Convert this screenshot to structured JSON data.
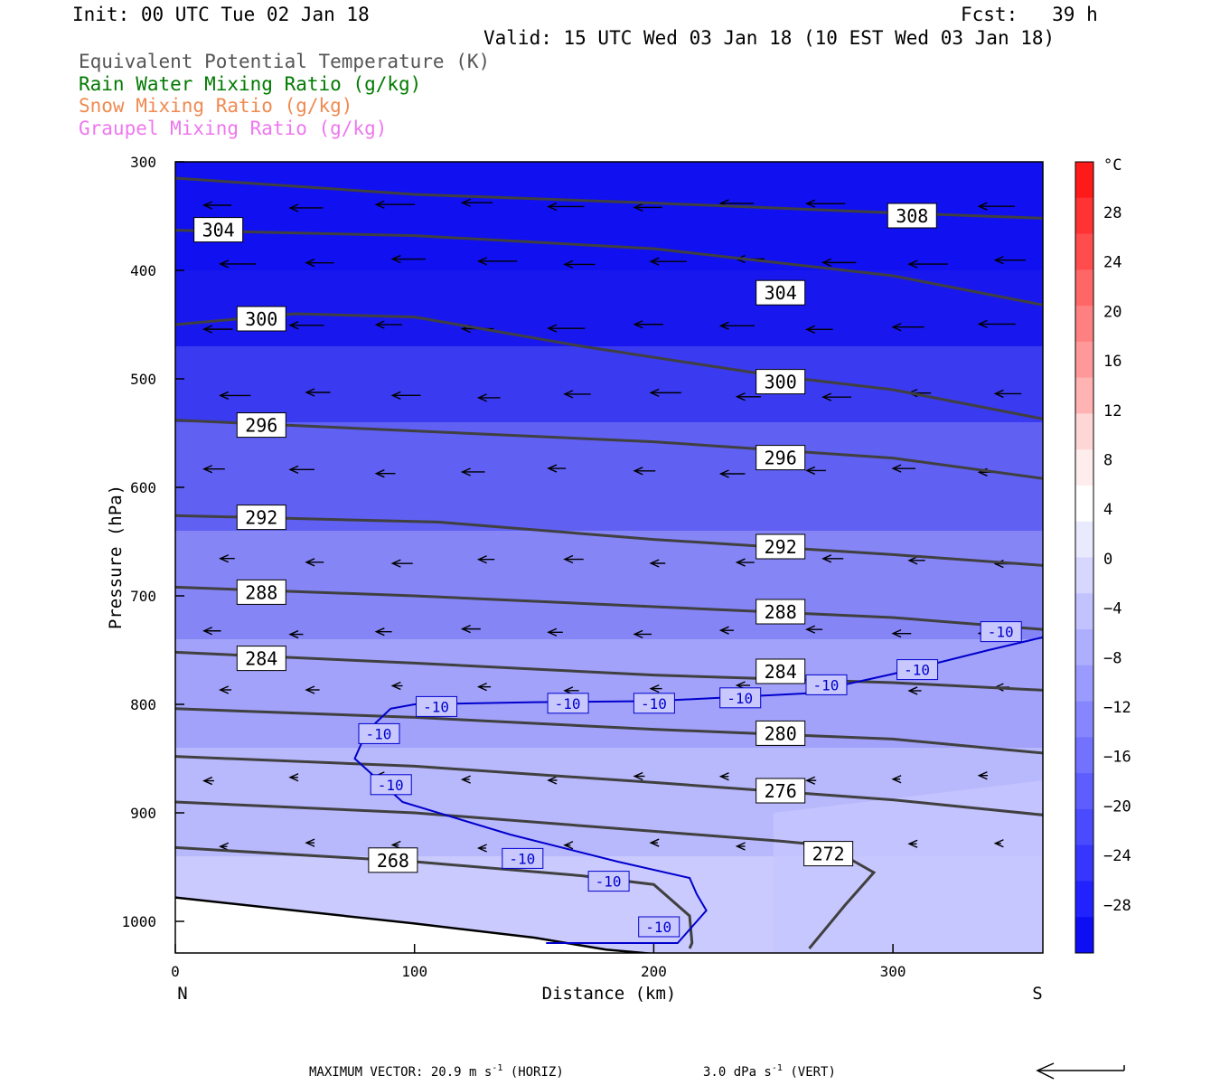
{
  "header": {
    "init": "Init: 00 UTC Tue 02 Jan 18",
    "fcst": "Fcst:   39 h",
    "valid": "Valid: 15 UTC Wed 03 Jan 18 (10 EST Wed 03 Jan 18)"
  },
  "chart_data": {
    "type": "cross-section contour",
    "title_lines": [
      {
        "text": "Equivalent Potential Temperature (K)",
        "color": "#555555"
      },
      {
        "text": "Rain Water Mixing Ratio (g/kg)",
        "color": "#007a00"
      },
      {
        "text": "Snow Mixing Ratio (g/kg)",
        "color": "#f08a50"
      },
      {
        "text": "Graupel Mixing Ratio (g/kg)",
        "color": "#ee77ee"
      }
    ],
    "xlabel": "Distance (km)",
    "ylabel": "Pressure (hPa)",
    "x_ticks": [
      0,
      100,
      200,
      300
    ],
    "y_ticks": [
      300,
      400,
      500,
      600,
      700,
      800,
      900,
      1000
    ],
    "xlim": [
      0,
      363
    ],
    "ylim": [
      300,
      1030
    ],
    "left_end": "N",
    "right_end": "S",
    "theta_e_contours": [
      {
        "label": "308",
        "points": [
          [
            0,
            315
          ],
          [
            100,
            330
          ],
          [
            200,
            338
          ],
          [
            300,
            347
          ],
          [
            363,
            352
          ]
        ]
      },
      {
        "label": "304",
        "points": [
          [
            0,
            363
          ],
          [
            100,
            368
          ],
          [
            200,
            380
          ],
          [
            300,
            405
          ],
          [
            363,
            432
          ]
        ]
      },
      {
        "label": "300",
        "points": [
          [
            0,
            450
          ],
          [
            50,
            440
          ],
          [
            100,
            443
          ],
          [
            170,
            470
          ],
          [
            250,
            497
          ],
          [
            300,
            510
          ],
          [
            363,
            537
          ]
        ]
      },
      {
        "label": "296",
        "points": [
          [
            0,
            538
          ],
          [
            100,
            548
          ],
          [
            200,
            558
          ],
          [
            300,
            573
          ],
          [
            363,
            592
          ]
        ]
      },
      {
        "label": "292",
        "points": [
          [
            0,
            626
          ],
          [
            110,
            632
          ],
          [
            200,
            648
          ],
          [
            300,
            662
          ],
          [
            363,
            672
          ]
        ]
      },
      {
        "label": "288",
        "points": [
          [
            0,
            692
          ],
          [
            100,
            700
          ],
          [
            200,
            710
          ],
          [
            300,
            720
          ],
          [
            363,
            731
          ]
        ]
      },
      {
        "label": "284",
        "points": [
          [
            0,
            752
          ],
          [
            100,
            762
          ],
          [
            200,
            773
          ],
          [
            300,
            780
          ],
          [
            363,
            787
          ]
        ]
      },
      {
        "label": "280",
        "points": [
          [
            0,
            804
          ],
          [
            100,
            812
          ],
          [
            200,
            823
          ],
          [
            300,
            832
          ],
          [
            363,
            845
          ]
        ]
      },
      {
        "label": "276",
        "points": [
          [
            0,
            848
          ],
          [
            100,
            857
          ],
          [
            200,
            872
          ],
          [
            300,
            888
          ],
          [
            363,
            902
          ]
        ]
      },
      {
        "label": "272",
        "points": [
          [
            0,
            890
          ],
          [
            100,
            900
          ],
          [
            200,
            917
          ],
          [
            253,
            926
          ],
          [
            272,
            930
          ],
          [
            292,
            955
          ],
          [
            280,
            985
          ],
          [
            265,
            1025
          ]
        ]
      },
      {
        "label": "268",
        "points": [
          [
            0,
            932
          ],
          [
            100,
            945
          ],
          [
            170,
            958
          ],
          [
            200,
            966
          ],
          [
            215,
            995
          ],
          [
            216,
            1020
          ],
          [
            215,
            1025
          ]
        ]
      }
    ],
    "temperature_contours": [
      {
        "label": "-10",
        "color": "#0000cc",
        "points": [
          [
            363,
            738
          ],
          [
            340,
            750
          ],
          [
            300,
            772
          ],
          [
            263,
            790
          ],
          [
            200,
            797
          ],
          [
            150,
            798
          ],
          [
            100,
            800
          ],
          [
            90,
            804
          ],
          [
            80,
            825
          ],
          [
            75,
            850
          ],
          [
            95,
            890
          ],
          [
            140,
            920
          ],
          [
            185,
            945
          ],
          [
            215,
            960
          ],
          [
            218,
            975
          ],
          [
            222,
            990
          ],
          [
            210,
            1020
          ],
          [
            180,
            1020
          ],
          [
            155,
            1020
          ]
        ]
      }
    ],
    "contour_labels": [
      {
        "text": "308",
        "x": 308,
        "p": 350
      },
      {
        "text": "304",
        "x": 18,
        "p": 363
      },
      {
        "text": "304",
        "x": 253,
        "p": 421
      },
      {
        "text": "300",
        "x": 36,
        "p": 445
      },
      {
        "text": "300",
        "x": 253,
        "p": 503
      },
      {
        "text": "296",
        "x": 36,
        "p": 543
      },
      {
        "text": "296",
        "x": 253,
        "p": 573
      },
      {
        "text": "292",
        "x": 36,
        "p": 628
      },
      {
        "text": "292",
        "x": 253,
        "p": 655
      },
      {
        "text": "288",
        "x": 36,
        "p": 697
      },
      {
        "text": "288",
        "x": 253,
        "p": 715
      },
      {
        "text": "284",
        "x": 36,
        "p": 758
      },
      {
        "text": "284",
        "x": 253,
        "p": 770
      },
      {
        "text": "280",
        "x": 253,
        "p": 827
      },
      {
        "text": "276",
        "x": 253,
        "p": 880
      },
      {
        "text": "272",
        "x": 273,
        "p": 938
      },
      {
        "text": "268",
        "x": 91,
        "p": 944
      }
    ],
    "temp_labels": [
      {
        "text": "-10",
        "x": 345,
        "p": 733
      },
      {
        "text": "-10",
        "x": 310,
        "p": 768
      },
      {
        "text": "-10",
        "x": 272,
        "p": 782
      },
      {
        "text": "-10",
        "x": 236,
        "p": 794
      },
      {
        "text": "-10",
        "x": 200,
        "p": 799
      },
      {
        "text": "-10",
        "x": 164,
        "p": 799
      },
      {
        "text": "-10",
        "x": 109,
        "p": 802
      },
      {
        "text": "-10",
        "x": 85,
        "p": 827
      },
      {
        "text": "-10",
        "x": 90,
        "p": 874
      },
      {
        "text": "-10",
        "x": 145,
        "p": 942
      },
      {
        "text": "-10",
        "x": 181,
        "p": 963
      },
      {
        "text": "-10",
        "x": 202,
        "p": 1005
      }
    ],
    "colorbar": {
      "unit": "°C",
      "levels": [
        28,
        24,
        20,
        16,
        12,
        8,
        4,
        0,
        -4,
        -8,
        -12,
        -16,
        -20,
        -24,
        -28
      ],
      "colors": [
        "#ff1a1a",
        "#ff3333",
        "#ff4d4d",
        "#ff6666",
        "#ff8080",
        "#ff9999",
        "#ffb3b3",
        "#ffd6d6",
        "#ffecec",
        "#ffffff",
        "#eaeaff",
        "#d6d6ff",
        "#c2c2ff",
        "#aeaeff",
        "#9a9aff",
        "#8686ff",
        "#7272ff",
        "#5e5eff",
        "#4a4aff",
        "#3636ff",
        "#2222ff",
        "#0e0ef5"
      ]
    },
    "fill_colors": {
      "p300": "#1010f0",
      "p400": "#1818ee",
      "p500": "#3a3af0",
      "p600": "#6060f2",
      "p700": "#8585f6",
      "p800": "#a2a2fa",
      "p900": "#b8b8fc",
      "p1000": "#cacaff",
      "ground": "#ffffff"
    },
    "contour_color": "#404040",
    "max_vector": {
      "text": "MAXIMUM VECTOR:  20.9 m s",
      "horiz": "(HORIZ)",
      "vert_val": "3.0 dPa s",
      "vert": "(VERT)",
      "sup": "-1"
    }
  }
}
